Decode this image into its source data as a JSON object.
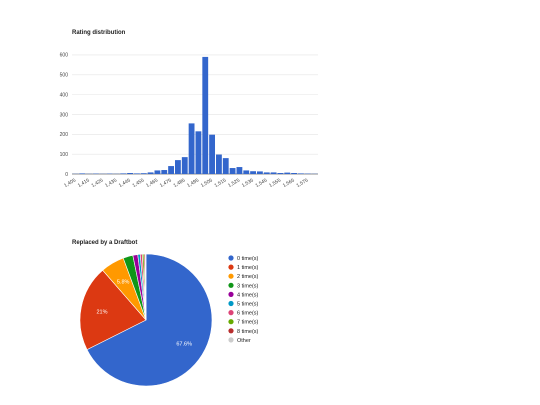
{
  "chart_data": [
    {
      "type": "bar",
      "title": "Rating distribution",
      "xlabel": "",
      "ylabel": "",
      "ylim": [
        0,
        650
      ],
      "yticks": [
        0,
        100,
        200,
        300,
        400,
        500,
        600
      ],
      "xtick_labels": [
        "1,405",
        "1,415",
        "1,425",
        "1,435",
        "1,445",
        "1,455",
        "1,465",
        "1,475",
        "1,485",
        "1,495",
        "1,505",
        "1,515",
        "1,525",
        "1,535",
        "1,545",
        "1,555",
        "1,565",
        "1,575"
      ],
      "x_start": 1405,
      "bin_width": 5,
      "values": [
        1,
        3,
        1,
        2,
        1,
        2,
        1,
        3,
        5,
        3,
        4,
        8,
        18,
        20,
        40,
        70,
        85,
        255,
        215,
        590,
        198,
        98,
        80,
        30,
        35,
        18,
        14,
        13,
        8,
        8,
        5,
        7,
        5,
        3,
        2,
        1
      ],
      "color": "#3366cc",
      "grid": true
    },
    {
      "type": "pie",
      "title": "Replaced by a Draftbot",
      "legend_position": "right",
      "slices": [
        {
          "label": "0 time(s)",
          "value": 67.6,
          "color": "#3366cc",
          "display": "67.6%"
        },
        {
          "label": "1 time(s)",
          "value": 21.0,
          "color": "#dc3912",
          "display": "21%"
        },
        {
          "label": "2 time(s)",
          "value": 5.8,
          "color": "#ff9900",
          "display": "5.8%"
        },
        {
          "label": "3 time(s)",
          "value": 2.4,
          "color": "#109618",
          "display": ""
        },
        {
          "label": "4 time(s)",
          "value": 1.2,
          "color": "#990099",
          "display": ""
        },
        {
          "label": "5 time(s)",
          "value": 0.6,
          "color": "#0099c6",
          "display": ""
        },
        {
          "label": "6 time(s)",
          "value": 0.5,
          "color": "#dd4477",
          "display": ""
        },
        {
          "label": "7 time(s)",
          "value": 0.4,
          "color": "#66aa00",
          "display": ""
        },
        {
          "label": "8 time(s)",
          "value": 0.3,
          "color": "#b82e2e",
          "display": ""
        },
        {
          "label": "Other",
          "value": 0.2,
          "color": "#cccccc",
          "display": ""
        }
      ]
    }
  ]
}
